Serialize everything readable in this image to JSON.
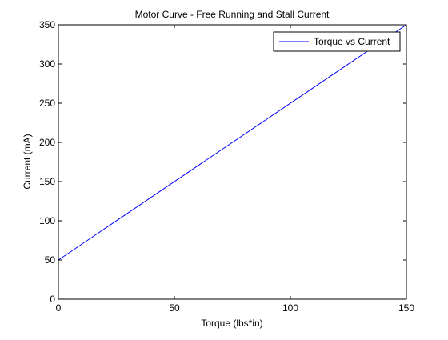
{
  "chart_data": {
    "type": "line",
    "title": "Motor Curve - Free Running and Stall Current",
    "xlabel": "Torque (lbs*in)",
    "ylabel": "Current (mA)",
    "xlim": [
      0,
      150
    ],
    "ylim": [
      0,
      350
    ],
    "xticks": [
      0,
      50,
      100,
      150
    ],
    "yticks": [
      0,
      50,
      100,
      150,
      200,
      250,
      300,
      350
    ],
    "grid": false,
    "legend_position": "top-right",
    "series": [
      {
        "name": "Torque vs Current",
        "color": "#0000ff",
        "x": [
          0,
          150
        ],
        "y": [
          50,
          350
        ]
      }
    ]
  }
}
